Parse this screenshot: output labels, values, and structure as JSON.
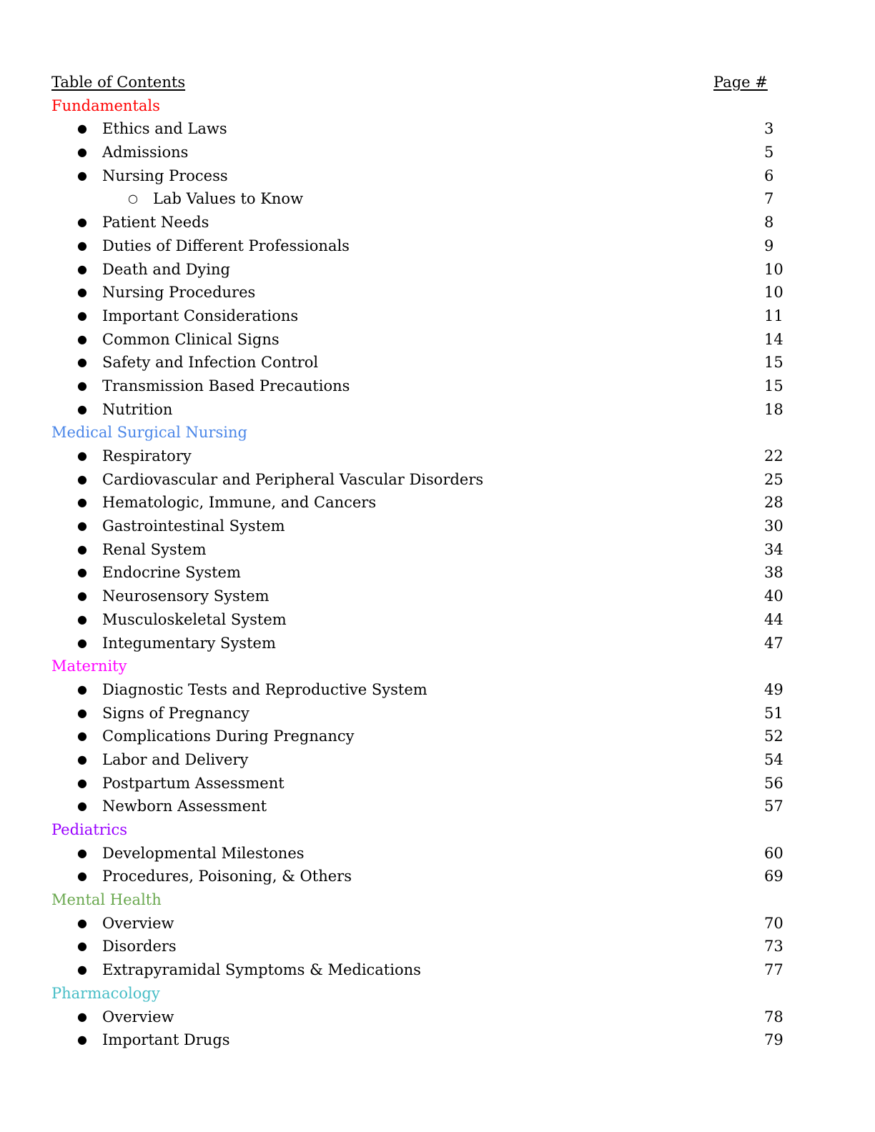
{
  "header": {
    "title": "Table of Contents",
    "page_label": "Page #"
  },
  "sections": [
    {
      "title": "Fundamentals",
      "color": "#ff0000",
      "items": [
        {
          "label": "Ethics and Laws",
          "page": "3"
        },
        {
          "label": "Admissions",
          "page": "5"
        },
        {
          "label": "Nursing Process",
          "page": "6"
        },
        {
          "label": "Lab Values to Know",
          "page": "7",
          "sub": true
        },
        {
          "label": "Patient Needs",
          "page": "8"
        },
        {
          "label": "Duties of Different Professionals",
          "page": "9"
        },
        {
          "label": "Death and Dying",
          "page": "10"
        },
        {
          "label": "Nursing Procedures",
          "page": "10"
        },
        {
          "label": "Important Considerations",
          "page": "11"
        },
        {
          "label": "Common Clinical Signs",
          "page": "14"
        },
        {
          "label": "Safety and Infection Control",
          "page": "15"
        },
        {
          "label": "Transmission Based Precautions",
          "page": "15"
        },
        {
          "label": "Nutrition",
          "page": "18"
        }
      ]
    },
    {
      "title": "Medical Surgical Nursing",
      "color": "#4a86e8",
      "items": [
        {
          "label": "Respiratory",
          "page": "22"
        },
        {
          "label": "Cardiovascular and Peripheral Vascular Disorders",
          "page": "25"
        },
        {
          "label": "Hematologic, Immune, and Cancers",
          "page": "28"
        },
        {
          "label": "Gastrointestinal System",
          "page": "30"
        },
        {
          "label": "Renal System",
          "page": "34"
        },
        {
          "label": "Endocrine System",
          "page": "38"
        },
        {
          "label": "Neurosensory System",
          "page": "40"
        },
        {
          "label": "Musculoskeletal System",
          "page": "44"
        },
        {
          "label": "Integumentary System",
          "page": "47"
        }
      ]
    },
    {
      "title": "Maternity",
      "color": "#ff00ff",
      "items": [
        {
          "label": "Diagnostic Tests and Reproductive System",
          "page": "49"
        },
        {
          "label": "Signs of Pregnancy",
          "page": "51"
        },
        {
          "label": "Complications During Pregnancy",
          "page": "52"
        },
        {
          "label": "Labor and Delivery",
          "page": "54"
        },
        {
          "label": "Postpartum Assessment",
          "page": "56"
        },
        {
          "label": "Newborn Assessment",
          "page": "57"
        }
      ]
    },
    {
      "title": "Pediatrics",
      "color": "#9900ff",
      "items": [
        {
          "label": "Developmental Milestones",
          "page": "60"
        },
        {
          "label": "Procedures, Poisoning, & Others",
          "page": "69"
        }
      ]
    },
    {
      "title": "Mental Health",
      "color": "#6aa84f",
      "items": [
        {
          "label": "Overview",
          "page": "70"
        },
        {
          "label": "Disorders",
          "page": "73"
        },
        {
          "label": "Extrapyramidal Symptoms & Medications",
          "page": "77"
        }
      ]
    },
    {
      "title": "Pharmacology",
      "color": "#46bdc6",
      "items": [
        {
          "label": "Overview",
          "page": "78"
        },
        {
          "label": "Important Drugs",
          "page": "79"
        }
      ]
    }
  ]
}
